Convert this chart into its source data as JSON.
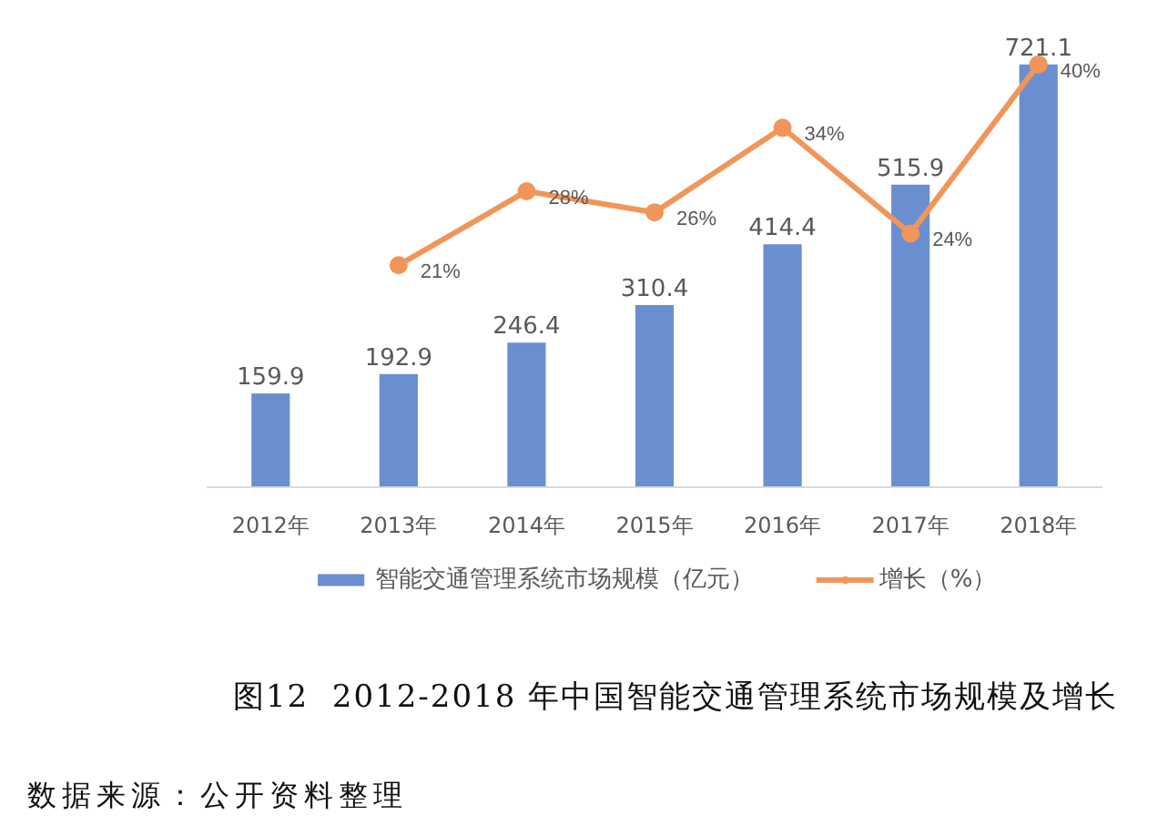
{
  "chart_data": {
    "type": "bar",
    "title": "图12  2012-2018 年中国智能交通管理系统市场规模及增长",
    "annotations": [
      "数据来源：公开资料整理"
    ],
    "categories": [
      "2012年",
      "2013年",
      "2014年",
      "2015年",
      "2016年",
      "2017年",
      "2018年"
    ],
    "series": [
      {
        "name": "智能交通管理系统市场规模（亿元）",
        "color": "#6a8fd0",
        "values": [
          159.9,
          192.9,
          246.4,
          310.4,
          414.4,
          515.9,
          721.1
        ],
        "value_labels": [
          "159.9",
          "192.9",
          "246.4",
          "310.4",
          "414.4",
          "515.9",
          "721.1"
        ]
      },
      {
        "name": "增长（%）",
        "type": "line",
        "axis": "y2",
        "color": "#f0965a",
        "marker": "circle",
        "values": [
          null,
          21,
          28,
          26,
          34,
          24,
          40
        ],
        "value_labels": [
          null,
          "21%",
          "28%",
          "26%",
          "34%",
          "24%",
          "40%"
        ]
      }
    ],
    "tick_labels": "x",
    "legend": "bottom"
  }
}
